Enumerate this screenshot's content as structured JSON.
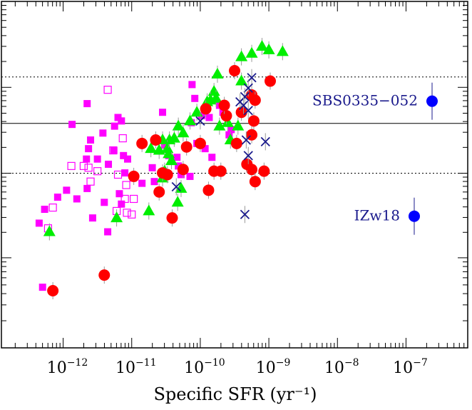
{
  "chart_data": {
    "type": "scatter",
    "title": "",
    "xlabel": "Specific SFR (yr⁻¹)",
    "ylabel": "",
    "xscale": "log",
    "xlim_log10": [
      -12.9,
      -6.1
    ],
    "ylim": [
      0,
      1
    ],
    "xticks": [
      {
        "base": "10",
        "exp": "−12",
        "log10": -12
      },
      {
        "base": "10",
        "exp": "−11",
        "log10": -11
      },
      {
        "base": "10",
        "exp": "−10",
        "log10": -10
      },
      {
        "base": "10",
        "exp": "−9",
        "log10": -9
      },
      {
        "base": "10",
        "exp": "−8",
        "log10": -8
      },
      {
        "base": "10",
        "exp": "−7",
        "log10": -7
      }
    ],
    "hlines": [
      {
        "y": 0.782,
        "style": "dotted"
      },
      {
        "y": 0.648,
        "style": "solid"
      },
      {
        "y": 0.504,
        "style": "dotted"
      }
    ],
    "colors": {
      "magenta": "#ff00ff",
      "green": "#00ee00",
      "red": "#ff0000",
      "navy": "#1a1a8c",
      "blue": "#0000ff",
      "errbar": "#999999"
    },
    "series": [
      {
        "name": "magenta filled squares",
        "marker": "square-filled",
        "color": "#ff00ff",
        "points": [
          [
            -11.87,
            0.645
          ],
          [
            -11.63,
            0.575
          ],
          [
            -11.66,
            0.545
          ],
          [
            -11.5,
            0.545
          ],
          [
            -11.34,
            0.53
          ],
          [
            -11.2,
            0.665
          ],
          [
            -11.15,
            0.655
          ],
          [
            -11.12,
            0.555
          ],
          [
            -11.42,
            0.62
          ],
          [
            -11.8,
            0.43
          ],
          [
            -11.95,
            0.455
          ],
          [
            -12.35,
            0.36
          ],
          [
            -12.08,
            0.435
          ],
          [
            -12.27,
            0.4
          ],
          [
            -11.4,
            0.42
          ],
          [
            -11.57,
            0.375
          ],
          [
            -11.26,
            0.57
          ],
          [
            -11.06,
            0.545
          ],
          [
            -11.1,
            0.505
          ],
          [
            -11.18,
            0.445
          ],
          [
            -10.98,
            0.49
          ],
          [
            -10.85,
            0.475
          ],
          [
            -10.7,
            0.52
          ],
          [
            -10.67,
            0.48
          ],
          [
            -10.55,
            0.68
          ],
          [
            -10.52,
            0.585
          ],
          [
            -10.46,
            0.555
          ],
          [
            -10.32,
            0.525
          ],
          [
            -10.34,
            0.55
          ],
          [
            -10.12,
            0.76
          ],
          [
            -10.08,
            0.72
          ],
          [
            -10.13,
            0.65
          ],
          [
            -10.05,
            0.59
          ],
          [
            -9.93,
            0.575
          ],
          [
            -9.98,
            0.67
          ],
          [
            -9.87,
            0.665
          ],
          [
            -9.83,
            0.55
          ],
          [
            -9.72,
            0.7
          ],
          [
            -9.67,
            0.68
          ],
          [
            -9.58,
            0.615
          ],
          [
            -9.55,
            0.63
          ],
          [
            -10.15,
            0.495
          ],
          [
            -10.28,
            0.5
          ],
          [
            -11.35,
            0.335
          ],
          [
            -11.15,
            0.415
          ],
          [
            -12.3,
            0.175
          ],
          [
            -11.65,
            0.705
          ],
          [
            -11.6,
            0.6
          ],
          [
            -11.65,
            0.46
          ],
          [
            -11.25,
            0.64
          ]
        ]
      },
      {
        "name": "magenta open squares",
        "marker": "square-open",
        "color": "#ff00ff",
        "points": [
          [
            -11.35,
            0.745
          ],
          [
            -11.6,
            0.48
          ],
          [
            -11.5,
            0.51
          ],
          [
            -11.27,
            0.57
          ],
          [
            -11.2,
            0.5
          ],
          [
            -11.13,
            0.605
          ],
          [
            -11.08,
            0.47
          ],
          [
            -11.07,
            0.39
          ],
          [
            -11.0,
            0.385
          ],
          [
            -11.22,
            0.395
          ],
          [
            -11.1,
            0.43
          ],
          [
            -10.97,
            0.43
          ],
          [
            -11.7,
            0.525
          ],
          [
            -11.63,
            0.52
          ],
          [
            -12.15,
            0.405
          ],
          [
            -12.22,
            0.345
          ],
          [
            -11.88,
            0.525
          ]
        ]
      },
      {
        "name": "green triangles",
        "marker": "triangle",
        "color": "#00ee00",
        "points": [
          [
            -9.4,
            0.84
          ],
          [
            -9.25,
            0.85
          ],
          [
            -9.1,
            0.87
          ],
          [
            -9.0,
            0.86
          ],
          [
            -8.8,
            0.855
          ],
          [
            -9.75,
            0.79
          ],
          [
            -9.4,
            0.77
          ],
          [
            -9.8,
            0.74
          ],
          [
            -9.85,
            0.715
          ],
          [
            -9.77,
            0.72
          ],
          [
            -9.9,
            0.71
          ],
          [
            -10.15,
            0.655
          ],
          [
            -10.05,
            0.68
          ],
          [
            -10.32,
            0.64
          ],
          [
            -10.25,
            0.62
          ],
          [
            -10.38,
            0.605
          ],
          [
            -10.45,
            0.6
          ],
          [
            -10.48,
            0.575
          ],
          [
            -10.55,
            0.6
          ],
          [
            -10.6,
            0.57
          ],
          [
            -10.46,
            0.56
          ],
          [
            -10.42,
            0.54
          ],
          [
            -10.52,
            0.51
          ],
          [
            -9.72,
            0.64
          ],
          [
            -9.6,
            0.65
          ],
          [
            -9.56,
            0.6
          ],
          [
            -9.45,
            0.64
          ],
          [
            -10.72,
            0.575
          ],
          [
            -10.33,
            0.42
          ],
          [
            -10.28,
            0.46
          ],
          [
            -10.55,
            0.49
          ],
          [
            -11.22,
            0.375
          ],
          [
            -10.75,
            0.395
          ],
          [
            -12.2,
            0.335
          ]
        ]
      },
      {
        "name": "red circles",
        "marker": "circle",
        "color": "#ff0000",
        "points": [
          [
            -9.5,
            0.8
          ],
          [
            -8.98,
            0.77
          ],
          [
            -9.25,
            0.73
          ],
          [
            -9.92,
            0.69
          ],
          [
            -9.62,
            0.67
          ],
          [
            -9.2,
            0.715
          ],
          [
            -10.2,
            0.58
          ],
          [
            -10.0,
            0.59
          ],
          [
            -10.97,
            0.495
          ],
          [
            -10.41,
            0.375
          ],
          [
            -10.55,
            0.505
          ],
          [
            -9.25,
            0.515
          ],
          [
            -9.2,
            0.48
          ],
          [
            -11.4,
            0.21
          ],
          [
            -9.22,
            0.655
          ],
          [
            -10.25,
            0.515
          ],
          [
            -10.6,
            0.45
          ],
          [
            -12.15,
            0.165
          ],
          [
            -10.48,
            0.5
          ],
          [
            -9.8,
            0.51
          ],
          [
            -9.07,
            0.51
          ],
          [
            -9.7,
            0.51
          ],
          [
            -9.47,
            0.59
          ],
          [
            -9.25,
            0.615
          ],
          [
            -9.32,
            0.53
          ],
          [
            -10.85,
            0.59
          ],
          [
            -9.65,
            0.7
          ],
          [
            -9.4,
            0.68
          ],
          [
            -9.88,
            0.455
          ],
          [
            -10.65,
            0.6
          ]
        ]
      },
      {
        "name": "navy crosses",
        "marker": "cross",
        "color": "#1a1a8c",
        "points": [
          [
            -9.25,
            0.78
          ],
          [
            -9.3,
            0.75
          ],
          [
            -9.35,
            0.725
          ],
          [
            -9.42,
            0.71
          ],
          [
            -9.37,
            0.7
          ],
          [
            -9.3,
            0.685
          ],
          [
            -10.0,
            0.655
          ],
          [
            -9.33,
            0.6
          ],
          [
            -9.05,
            0.595
          ],
          [
            -9.3,
            0.555
          ],
          [
            -10.35,
            0.465
          ],
          [
            -9.35,
            0.385
          ]
        ]
      },
      {
        "name": "blue circles",
        "marker": "circle",
        "color": "#0000ff",
        "points": [
          [
            -6.62,
            0.712
          ],
          [
            -6.88,
            0.38
          ]
        ]
      }
    ],
    "annotations": [
      {
        "text": "SBS0335−052",
        "x": -6.62,
        "y": 0.712
      },
      {
        "text": "IZw18",
        "x": -6.88,
        "y": 0.38
      }
    ]
  }
}
